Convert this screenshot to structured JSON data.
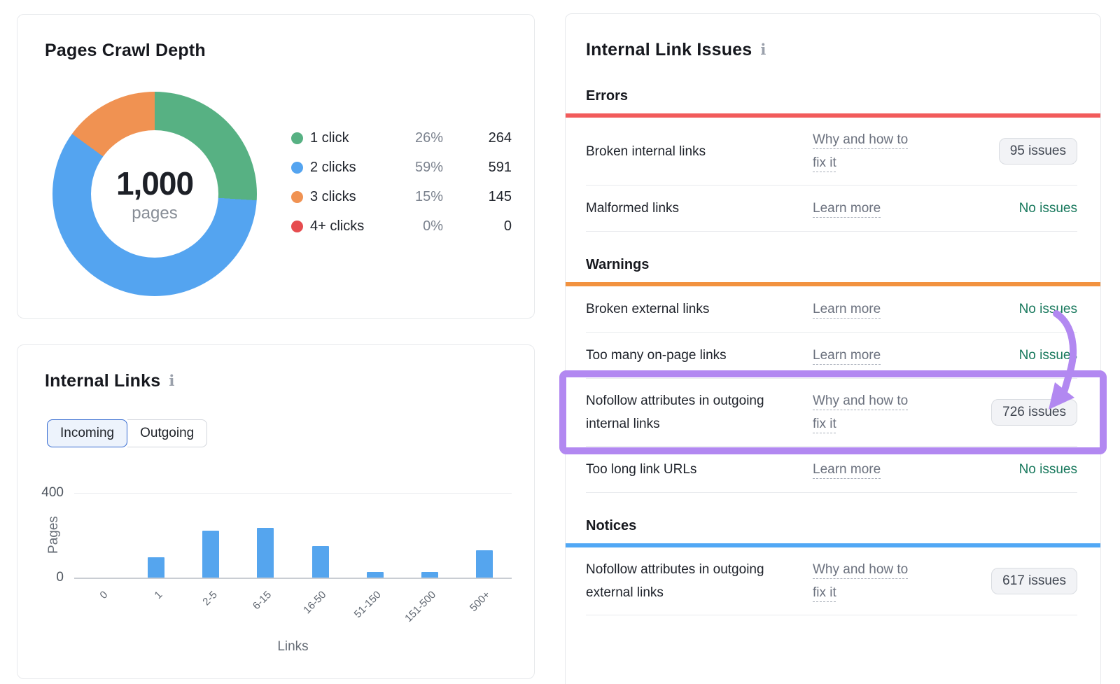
{
  "crawl_card": {
    "title": "Pages Crawl Depth",
    "donut": {
      "center_value": "1,000",
      "center_label": "pages"
    },
    "legend": [
      {
        "label": "1 click",
        "percent": "26%",
        "count": "264",
        "color": "#57B183"
      },
      {
        "label": "2 clicks",
        "percent": "59%",
        "count": "591",
        "color": "#54A4F0"
      },
      {
        "label": "3 clicks",
        "percent": "15%",
        "count": "145",
        "color": "#F09252"
      },
      {
        "label": "4+ clicks",
        "percent": "0%",
        "count": "0",
        "color": "#E64C4F"
      }
    ]
  },
  "links_card": {
    "title": "Internal Links",
    "info_icon": "i",
    "tabs": [
      {
        "label": "Incoming",
        "selected": true
      },
      {
        "label": "Outgoing",
        "selected": false
      }
    ],
    "y_top_label": "400",
    "y_bottom_label": "0",
    "ylabel": "Pages",
    "xlabel": "Links"
  },
  "issues_card": {
    "title": "Internal Link Issues",
    "info_icon": "i",
    "sections": [
      {
        "name": "Errors",
        "bar_color": "#F25B5B",
        "rows": [
          {
            "label": "Broken internal links",
            "link": "Why and how to fix it",
            "badge": "95 issues"
          },
          {
            "label": "Malformed links",
            "link": "Learn more",
            "status": "No issues"
          }
        ]
      },
      {
        "name": "Warnings",
        "bar_color": "#F2923F",
        "rows": [
          {
            "label": "Broken external links",
            "link": "Learn more",
            "status": "No issues"
          },
          {
            "label": "Too many on-page links",
            "link": "Learn more",
            "status": "No issues"
          },
          {
            "label": "Nofollow attributes in outgoing internal links",
            "link": "Why and how to fix it",
            "badge": "726 issues",
            "highlighted": true
          },
          {
            "label": "Too long link URLs",
            "link": "Learn more",
            "status": "No issues"
          }
        ]
      },
      {
        "name": "Notices",
        "bar_color": "#51A8F5",
        "rows": [
          {
            "label": "Nofollow attributes in outgoing external links",
            "link": "Why and how to fix it",
            "badge": "617 issues"
          }
        ]
      }
    ]
  },
  "annotation": {
    "color": "#B288F1"
  },
  "chart_data": [
    {
      "type": "pie",
      "title": "Pages Crawl Depth",
      "labels": [
        "1 click",
        "2 clicks",
        "3 clicks",
        "4+ clicks"
      ],
      "values": [
        264,
        591,
        145,
        0
      ],
      "percents": [
        26,
        59,
        15,
        0
      ],
      "colors": [
        "#57B183",
        "#54A4F0",
        "#F09252",
        "#E64C4F"
      ],
      "donut": true,
      "center_value": "1,000",
      "center_label": "pages",
      "legend_position": "right"
    },
    {
      "type": "bar",
      "title": "Internal Links (Incoming)",
      "categories": [
        "0",
        "1",
        "2-5",
        "6-15",
        "16-50",
        "51-150",
        "151-500",
        "500+"
      ],
      "values": [
        0,
        95,
        220,
        235,
        150,
        25,
        25,
        130
      ],
      "xlabel": "Links",
      "ylabel": "Pages",
      "ylim": [
        0,
        400
      ],
      "yticks": [
        0,
        400
      ],
      "bar_color": "#55A5EE",
      "grid": "y-top-only"
    }
  ]
}
